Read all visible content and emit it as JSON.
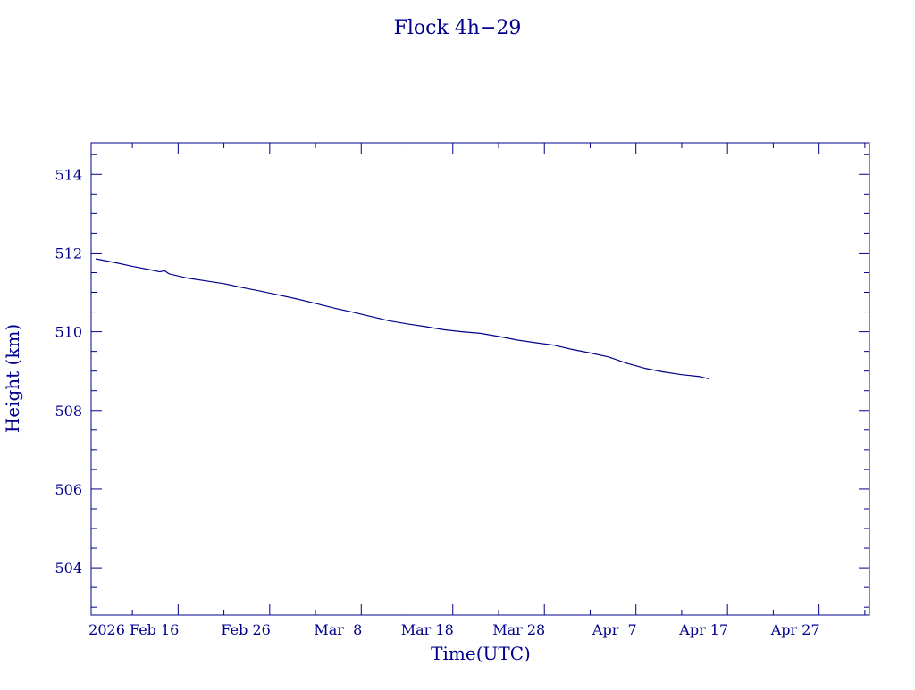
{
  "chart_data": {
    "type": "line",
    "title": "Flock 4h−29",
    "xlabel": "Time(UTC)",
    "ylabel": "Height (km)",
    "ylim": [
      502.8,
      514.8
    ],
    "xlim": [
      "2026-02-06T12:00",
      "2026-05-02T12:00"
    ],
    "grid": false,
    "colors": {
      "axis": "#00008b",
      "line": "#00008b",
      "text": "#00008b",
      "background": "#ffffff"
    },
    "y_ticks": [
      504,
      506,
      508,
      510,
      512,
      514
    ],
    "x_ticks": [
      {
        "date": "2026-02-16",
        "label": "2026 Feb 16"
      },
      {
        "date": "2026-02-26",
        "label": "Feb 26"
      },
      {
        "date": "2026-03-08",
        "label": "Mar  8"
      },
      {
        "date": "2026-03-18",
        "label": "Mar 18"
      },
      {
        "date": "2026-03-28",
        "label": "Mar 28"
      },
      {
        "date": "2026-04-07",
        "label": "Apr  7"
      },
      {
        "date": "2026-04-17",
        "label": "Apr 17"
      },
      {
        "date": "2026-04-27",
        "label": "Apr 27"
      }
    ],
    "series": [
      {
        "points": [
          [
            "2026-02-07",
            511.85
          ],
          [
            "2026-02-09",
            511.76
          ],
          [
            "2026-02-11",
            511.66
          ],
          [
            "2026-02-13",
            511.57
          ],
          [
            "2026-02-14",
            511.52
          ],
          [
            "2026-02-14T12:00",
            511.55
          ],
          [
            "2026-02-15",
            511.47
          ],
          [
            "2026-02-17",
            511.36
          ],
          [
            "2026-02-19",
            511.29
          ],
          [
            "2026-02-21",
            511.22
          ],
          [
            "2026-02-23",
            511.12
          ],
          [
            "2026-02-25",
            511.03
          ],
          [
            "2026-02-27",
            510.93
          ],
          [
            "2026-03-01",
            510.83
          ],
          [
            "2026-03-03",
            510.72
          ],
          [
            "2026-03-05",
            510.6
          ],
          [
            "2026-03-07",
            510.5
          ],
          [
            "2026-03-09",
            510.39
          ],
          [
            "2026-03-11",
            510.28
          ],
          [
            "2026-03-13",
            510.2
          ],
          [
            "2026-03-15",
            510.13
          ],
          [
            "2026-03-17",
            510.05
          ],
          [
            "2026-03-19",
            510.0
          ],
          [
            "2026-03-21",
            509.96
          ],
          [
            "2026-03-23",
            509.88
          ],
          [
            "2026-03-25",
            509.79
          ],
          [
            "2026-03-27",
            509.72
          ],
          [
            "2026-03-29",
            509.66
          ],
          [
            "2026-03-31",
            509.55
          ],
          [
            "2026-04-02",
            509.46
          ],
          [
            "2026-04-04",
            509.36
          ],
          [
            "2026-04-06",
            509.2
          ],
          [
            "2026-04-08",
            509.07
          ],
          [
            "2026-04-10",
            508.98
          ],
          [
            "2026-04-12",
            508.91
          ],
          [
            "2026-04-14",
            508.86
          ],
          [
            "2026-04-15",
            508.8
          ]
        ]
      }
    ]
  }
}
